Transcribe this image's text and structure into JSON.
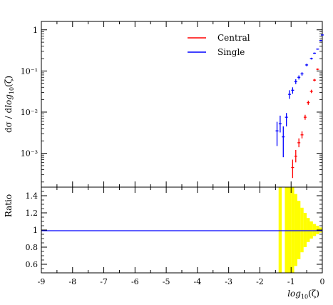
{
  "chart_data": [
    {
      "type": "scatter",
      "panel": "main",
      "ylabel": "dσ / d log10(ζ)",
      "xlabel": "",
      "yscale": "log",
      "xlim": [
        -9,
        0
      ],
      "ylim": [
        0.00015,
        1.6
      ],
      "yticks": [
        {
          "value": 1,
          "label": "1"
        },
        {
          "value": 0.1,
          "label": "10⁻¹"
        },
        {
          "value": 0.01,
          "label": "10⁻²"
        },
        {
          "value": 0.001,
          "label": "10⁻³"
        }
      ],
      "legend_position": "top-right",
      "series": [
        {
          "name": "Central",
          "color": "#ff0000",
          "points": [
            {
              "x": -0.95,
              "y": 0.00045,
              "lo": 0.00025,
              "hi": 0.0007
            },
            {
              "x": -0.85,
              "y": 0.00085,
              "lo": 0.0006,
              "hi": 0.0012
            },
            {
              "x": -0.75,
              "y": 0.0018,
              "lo": 0.0014,
              "hi": 0.0023
            },
            {
              "x": -0.65,
              "y": 0.0028,
              "lo": 0.0023,
              "hi": 0.0034
            },
            {
              "x": -0.55,
              "y": 0.0075,
              "lo": 0.0065,
              "hi": 0.0086
            },
            {
              "x": -0.45,
              "y": 0.017,
              "lo": 0.015,
              "hi": 0.019
            },
            {
              "x": -0.35,
              "y": 0.032,
              "lo": 0.029,
              "hi": 0.035
            },
            {
              "x": -0.25,
              "y": 0.06,
              "lo": 0.056,
              "hi": 0.064
            },
            {
              "x": -0.15,
              "y": 0.11,
              "lo": 0.105,
              "hi": 0.115
            }
          ]
        },
        {
          "name": "Single",
          "color": "#0000ff",
          "points": [
            {
              "x": -1.45,
              "y": 0.0035,
              "lo": 0.0015,
              "hi": 0.0058
            },
            {
              "x": -1.35,
              "y": 0.0052,
              "lo": 0.0032,
              "hi": 0.0082
            },
            {
              "x": -1.25,
              "y": 0.0025,
              "lo": 0.0008,
              "hi": 0.0045
            },
            {
              "x": -1.15,
              "y": 0.0075,
              "lo": 0.0045,
              "hi": 0.0095
            },
            {
              "x": -1.05,
              "y": 0.027,
              "lo": 0.021,
              "hi": 0.034
            },
            {
              "x": -0.95,
              "y": 0.034,
              "lo": 0.028,
              "hi": 0.04
            },
            {
              "x": -0.85,
              "y": 0.055,
              "lo": 0.048,
              "hi": 0.063
            },
            {
              "x": -0.75,
              "y": 0.07,
              "lo": 0.062,
              "hi": 0.078
            },
            {
              "x": -0.65,
              "y": 0.085,
              "lo": 0.077,
              "hi": 0.093
            },
            {
              "x": -0.5,
              "y": 0.14,
              "lo": 0.13,
              "hi": 0.15
            },
            {
              "x": -0.35,
              "y": 0.2,
              "lo": 0.19,
              "hi": 0.21
            },
            {
              "x": -0.25,
              "y": 0.27,
              "lo": 0.26,
              "hi": 0.28
            },
            {
              "x": -0.15,
              "y": 0.34,
              "lo": 0.33,
              "hi": 0.35
            },
            {
              "x": -0.05,
              "y": 0.55,
              "lo": 0.53,
              "hi": 0.57
            },
            {
              "x": 0.0,
              "y": 0.75,
              "lo": 0.73,
              "hi": 0.77
            }
          ]
        }
      ]
    },
    {
      "type": "bar",
      "panel": "ratio",
      "ylabel": "Ratio",
      "xlabel": "log10(ζ)",
      "xlim": [
        -9,
        0
      ],
      "ylim": [
        0.5,
        1.5
      ],
      "xticks": [
        "-9",
        "-8",
        "-7",
        "-6",
        "-5",
        "-4",
        "-3",
        "-2",
        "-1",
        "0"
      ],
      "yticks": [
        "0.6",
        "0.8",
        "1",
        "1.2",
        "1.4"
      ],
      "reference_line": 1,
      "band_color": "#ffff00",
      "line_color": "#0000ff",
      "band": [
        {
          "x0": -1.4,
          "x1": -1.3,
          "lo": 0.5,
          "hi": 1.5
        },
        {
          "x0": -1.2,
          "x1": -1.0,
          "lo": 0.5,
          "hi": 1.5
        },
        {
          "x0": -1.0,
          "x1": -0.9,
          "lo": 0.5,
          "hi": 1.5
        },
        {
          "x0": -0.9,
          "x1": -0.8,
          "lo": 0.58,
          "hi": 1.42
        },
        {
          "x0": -0.8,
          "x1": -0.7,
          "lo": 0.66,
          "hi": 1.34
        },
        {
          "x0": -0.7,
          "x1": -0.6,
          "lo": 0.74,
          "hi": 1.26
        },
        {
          "x0": -0.6,
          "x1": -0.5,
          "lo": 0.8,
          "hi": 1.2
        },
        {
          "x0": -0.5,
          "x1": -0.4,
          "lo": 0.86,
          "hi": 1.14
        },
        {
          "x0": -0.4,
          "x1": -0.3,
          "lo": 0.9,
          "hi": 1.1
        },
        {
          "x0": -0.3,
          "x1": -0.2,
          "lo": 0.93,
          "hi": 1.07
        },
        {
          "x0": -0.2,
          "x1": -0.1,
          "lo": 0.95,
          "hi": 1.05
        },
        {
          "x0": -0.1,
          "x1": 0.0,
          "lo": 0.97,
          "hi": 1.03
        }
      ]
    }
  ],
  "labels": {
    "main_ylabel_prefix": "dσ / d",
    "main_ylabel_log": "log",
    "main_ylabel_sub": "10",
    "main_ylabel_suffix": "(ζ)",
    "ratio_ylabel": "Ratio",
    "xlabel_log": "log",
    "xlabel_sub": "10",
    "xlabel_suffix": "(ζ)"
  }
}
